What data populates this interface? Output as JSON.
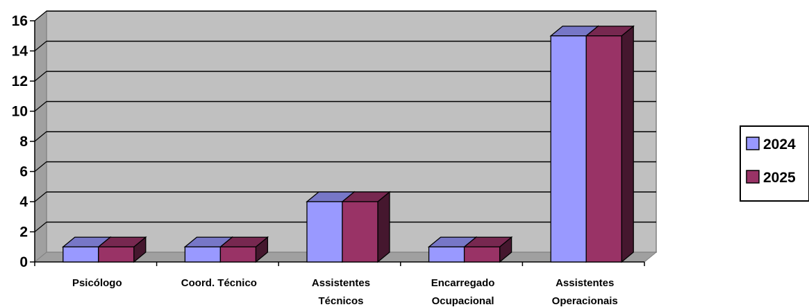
{
  "chart_data": {
    "type": "bar",
    "categories": [
      [
        "Psicólogo"
      ],
      [
        "Coord. Técnico"
      ],
      [
        "Assistentes",
        "Técnicos"
      ],
      [
        "Encarregado",
        "Ocupacional"
      ],
      [
        "Assistentes",
        "Operacionais"
      ]
    ],
    "series": [
      {
        "name": "2024",
        "values": [
          1,
          1,
          4,
          1,
          15
        ],
        "color": "#9999ff"
      },
      {
        "name": "2025",
        "values": [
          1,
          1,
          4,
          1,
          15
        ],
        "color": "#993366"
      }
    ],
    "ylim": [
      0,
      16
    ],
    "yticks": [
      "0",
      "2",
      "4",
      "6",
      "8",
      "10",
      "12",
      "14",
      "16"
    ],
    "grid": true,
    "legend_position": "right",
    "wall_color": "#c0c0c0",
    "title": "",
    "xlabel": "",
    "ylabel": ""
  }
}
